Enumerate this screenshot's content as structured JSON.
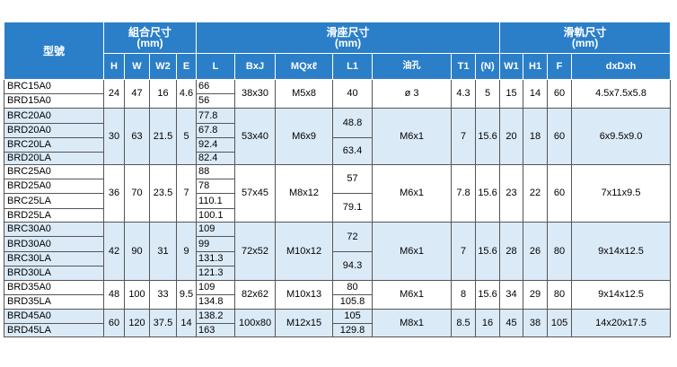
{
  "header": {
    "model_label": "型號",
    "group_assembly": {
      "title": "組合尺寸",
      "unit": "(mm)"
    },
    "group_block": {
      "title": "滑座尺寸",
      "unit": "(mm)"
    },
    "group_rail": {
      "title": "滑軌尺寸",
      "unit": "(mm)"
    },
    "columns": [
      "H",
      "W",
      "W2",
      "E",
      "L",
      "BxJ",
      "MQxℓ",
      "L1",
      "油孔",
      "T1",
      "(N)",
      "W1",
      "H1",
      "F",
      "dxDxh"
    ]
  },
  "groups": [
    {
      "models": [
        "BRC15A0",
        "BRD15A0"
      ],
      "H": "24",
      "W": "47",
      "W2": "16",
      "E": "4.6",
      "L": [
        "66",
        "56"
      ],
      "BxJ": "38x30",
      "MQ": "M5x8",
      "L1": [
        "40"
      ],
      "oil": "ø 3",
      "T1": "4.3",
      "N": "5",
      "W1": "15",
      "H1": "14",
      "F": "60",
      "dDh": "4.5x7.5x5.8"
    },
    {
      "models": [
        "BRC20A0",
        "BRD20A0",
        "BRC20LA",
        "BRD20LA"
      ],
      "H": "30",
      "W": "63",
      "W2": "21.5",
      "E": "5",
      "L": [
        "77.8",
        "67.8",
        "92.4",
        "82.4"
      ],
      "BxJ": "53x40",
      "MQ": "M6x9",
      "L1": [
        "48.8",
        "63.4"
      ],
      "oil": "M6x1",
      "T1": "7",
      "N": "15.6",
      "W1": "20",
      "H1": "18",
      "F": "60",
      "dDh": "6x9.5x9.0"
    },
    {
      "models": [
        "BRC25A0",
        "BRD25A0",
        "BRC25LA",
        "BRD25LA"
      ],
      "H": "36",
      "W": "70",
      "W2": "23.5",
      "E": "7",
      "L": [
        "88",
        "78",
        "110.1",
        "100.1"
      ],
      "BxJ": "57x45",
      "MQ": "M8x12",
      "L1": [
        "57",
        "79.1"
      ],
      "oil": "M6x1",
      "T1": "7.8",
      "N": "15.6",
      "W1": "23",
      "H1": "22",
      "F": "60",
      "dDh": "7x11x9.5"
    },
    {
      "models": [
        "BRC30A0",
        "BRD30A0",
        "BRC30LA",
        "BRD30LA"
      ],
      "H": "42",
      "W": "90",
      "W2": "31",
      "E": "9",
      "L": [
        "109",
        "99",
        "131.3",
        "121.3"
      ],
      "BxJ": "72x52",
      "MQ": "M10x12",
      "L1": [
        "72",
        "94.3"
      ],
      "oil": "M6x1",
      "T1": "7",
      "N": "15.6",
      "W1": "28",
      "H1": "26",
      "F": "80",
      "dDh": "9x14x12.5"
    },
    {
      "models": [
        "BRD35A0",
        "BRD35LA"
      ],
      "H": "48",
      "W": "100",
      "W2": "33",
      "E": "9.5",
      "L": [
        "109",
        "134.8"
      ],
      "BxJ": "82x62",
      "MQ": "M10x13",
      "L1": [
        "80",
        "105.8"
      ],
      "oil": "M6x1",
      "T1": "8",
      "N": "15.6",
      "W1": "34",
      "H1": "29",
      "F": "80",
      "dDh": "9x14x12.5"
    },
    {
      "models": [
        "BRD45A0",
        "BRD45LA"
      ],
      "H": "60",
      "W": "120",
      "W2": "37.5",
      "E": "14",
      "L": [
        "138.2",
        "163"
      ],
      "BxJ": "100x80",
      "MQ": "M12x15",
      "L1": [
        "105",
        "129.8"
      ],
      "oil": "M8x1",
      "T1": "8.5",
      "N": "16",
      "W1": "45",
      "H1": "38",
      "F": "105",
      "dDh": "14x20x17.5"
    }
  ]
}
